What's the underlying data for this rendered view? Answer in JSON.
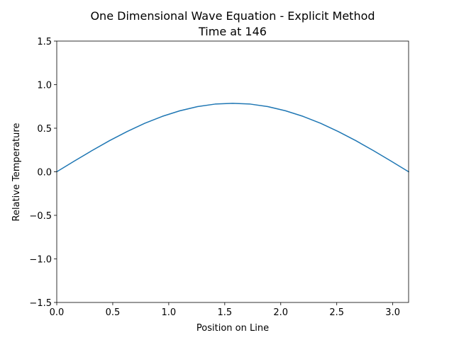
{
  "chart_data": {
    "type": "line",
    "title": "One Dimensional Wave Equation - Explicit Method",
    "subtitle": "Time at 146",
    "xlabel": "Position on Line",
    "ylabel": "Relative Temperature",
    "xlim": [
      0,
      3.14159
    ],
    "ylim": [
      -1.5,
      1.5
    ],
    "xticks": [
      0.0,
      0.5,
      1.0,
      1.5,
      2.0,
      2.5,
      3.0
    ],
    "xtick_labels": [
      "0.0",
      "0.5",
      "1.0",
      "1.5",
      "2.0",
      "2.5",
      "3.0"
    ],
    "yticks": [
      -1.5,
      -1.0,
      -0.5,
      0.0,
      0.5,
      1.0,
      1.5
    ],
    "ytick_labels": [
      "−1.5",
      "−1.0",
      "−0.5",
      "0.0",
      "0.5",
      "1.0",
      "1.5"
    ],
    "grid": false,
    "series": [
      {
        "color": "#1f77b4",
        "x": [
          0.0,
          0.1571,
          0.3142,
          0.4712,
          0.6283,
          0.7854,
          0.9425,
          1.0996,
          1.2566,
          1.4137,
          1.5708,
          1.7279,
          1.885,
          2.042,
          2.1991,
          2.3562,
          2.5133,
          2.6704,
          2.8274,
          2.9845,
          3.1416
        ],
        "y": [
          0.0,
          0.123,
          0.243,
          0.357,
          0.462,
          0.556,
          0.636,
          0.7,
          0.748,
          0.777,
          0.786,
          0.777,
          0.748,
          0.7,
          0.636,
          0.556,
          0.462,
          0.357,
          0.243,
          0.123,
          0.0
        ]
      }
    ]
  }
}
